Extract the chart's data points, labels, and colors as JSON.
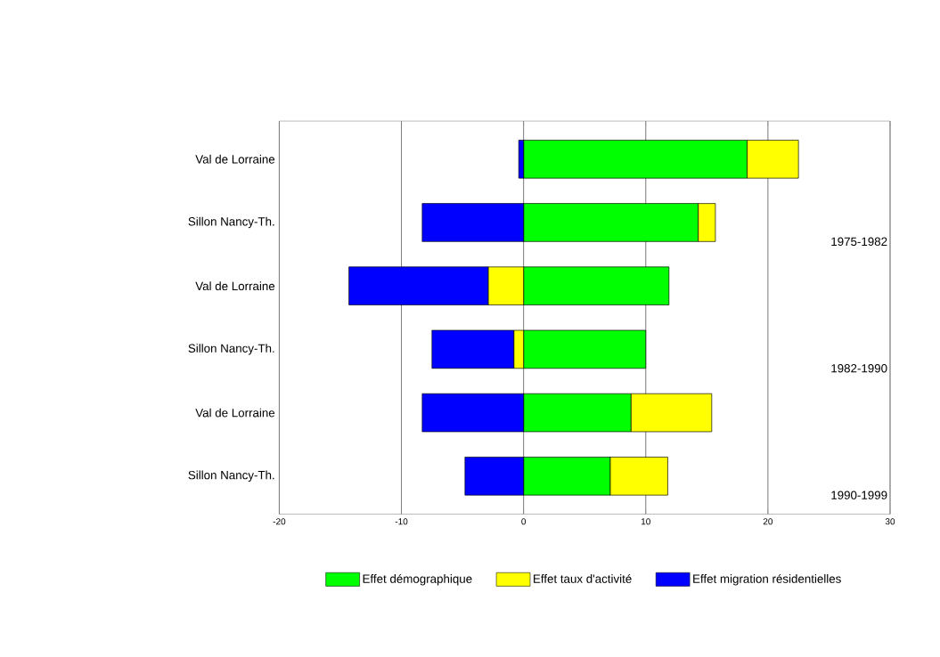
{
  "chart_data": {
    "type": "bar",
    "orientation": "horizontal",
    "stacked": true,
    "categories": [
      "Val de Lorraine",
      "Sillon Nancy-Th.",
      "Val de Lorraine",
      "Sillon Nancy-Th.",
      "Val de Lorraine",
      "Sillon Nancy-Th."
    ],
    "series": [
      {
        "name": "Effet démographique",
        "color": "#00ff00",
        "values": [
          18.3,
          14.3,
          11.9,
          10.0,
          8.8,
          7.1
        ]
      },
      {
        "name": "Effet taux d'activité",
        "color": "#ffff00",
        "values": [
          4.2,
          1.4,
          -2.9,
          -0.8,
          6.6,
          4.7
        ]
      },
      {
        "name": "Effet migration résidentielles",
        "color": "#0000ff",
        "values": [
          -0.4,
          -8.3,
          -11.4,
          -6.7,
          -8.3,
          -4.8
        ]
      }
    ],
    "xlim": [
      -20,
      30
    ],
    "xticks": [
      -20,
      -10,
      0,
      10,
      20,
      30
    ],
    "grid": "x",
    "legend": "bottom",
    "annotations": [
      "1975-1982",
      "1982-1990",
      "1990-1999"
    ]
  }
}
